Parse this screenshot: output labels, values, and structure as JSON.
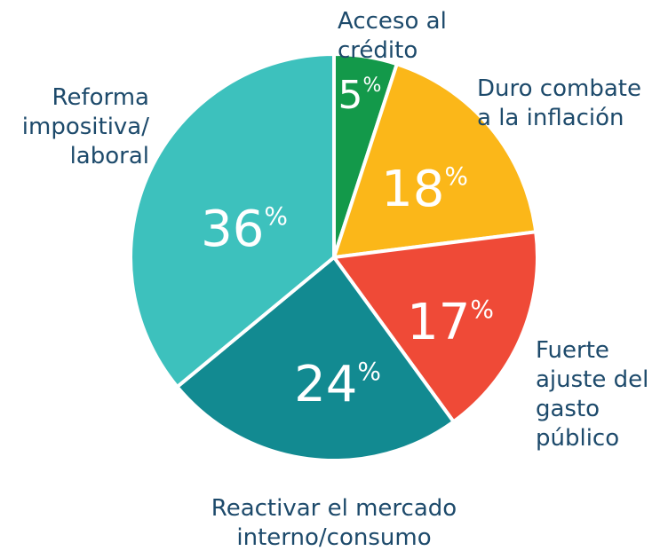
{
  "chart_data": {
    "type": "pie",
    "categories": [
      "Acceso al\ncrédito",
      "Duro combate\na la inflación",
      "Fuerte\najuste del\ngasto\npúblico",
      "Reactivar el mercado\ninterno/consumo",
      "Reforma\nimpositiva/\nlaboral"
    ],
    "values": [
      5,
      18,
      17,
      24,
      36
    ],
    "value_labels": [
      "5%",
      "18%",
      "17%",
      "24%",
      "36%"
    ],
    "colors": [
      "#13994a",
      "#fbb719",
      "#ef4a37",
      "#128a91",
      "#3dc1bd"
    ]
  }
}
